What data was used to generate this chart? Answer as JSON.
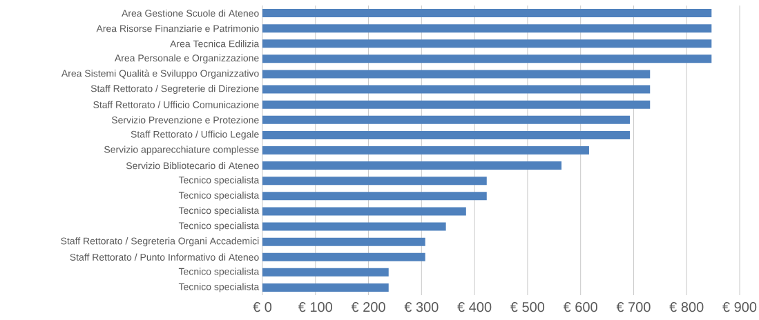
{
  "chart_data": {
    "type": "bar",
    "orientation": "horizontal",
    "categories": [
      "Area Gestione Scuole di Ateneo",
      "Area Risorse Finanziarie e Patrimonio",
      "Area Tecnica Edilizia",
      "Area Personale e Organizzazione",
      "Area Sistemi Qualità e Sviluppo Organizzativo",
      "Staff Rettorato / Segreterie di Direzione",
      "Staff Rettorato / Ufficio Comunicazione",
      "Servizio Prevenzione e Protezione",
      "Staff Rettorato / Ufficio Legale",
      "Servizio apparecchiature complesse",
      "Servizio Bibliotecario di Ateneo",
      "Tecnico specialista",
      "Tecnico specialista",
      "Tecnico specialista",
      "Tecnico specialista",
      "Staff Rettorato / Segreteria Organi Accademici",
      "Staff Rettorato / Punto Informativo di Ateneo",
      "Tecnico specialista",
      "Tecnico specialista"
    ],
    "values": [
      847,
      847,
      847,
      847,
      731,
      731,
      731,
      693,
      693,
      616,
      564,
      423,
      423,
      384,
      346,
      307,
      307,
      238,
      238
    ],
    "color": "#4f81bd",
    "xlim": [
      0,
      900
    ],
    "xticks": [
      {
        "value": 0,
        "label": "€ 0"
      },
      {
        "value": 100,
        "label": "€ 100"
      },
      {
        "value": 200,
        "label": "€ 200"
      },
      {
        "value": 300,
        "label": "€ 300"
      },
      {
        "value": 400,
        "label": "€ 400"
      },
      {
        "value": 500,
        "label": "€ 500"
      },
      {
        "value": 600,
        "label": "€ 600"
      },
      {
        "value": 700,
        "label": "€ 700"
      },
      {
        "value": 800,
        "label": "€ 800"
      },
      {
        "value": 900,
        "label": "€ 900"
      }
    ],
    "grid": "x"
  }
}
